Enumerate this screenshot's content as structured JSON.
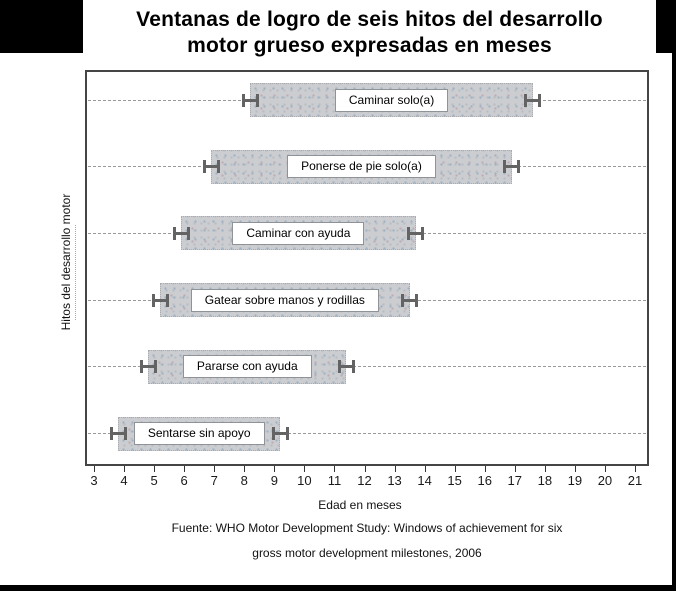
{
  "chart_data": {
    "type": "bar",
    "orientation": "horizontal-range",
    "title": "Ventanas de logro de seis hitos del desarrollo motor grueso expresadas en meses",
    "title_lines": [
      "Ventanas de logro de seis hitos del desarrollo",
      "motor grueso expresadas en meses"
    ],
    "xlabel": "Edad en meses",
    "ylabel": "Hitos del desarrollo motor",
    "xlim": [
      3,
      21
    ],
    "x_ticks": [
      3,
      4,
      5,
      6,
      7,
      8,
      9,
      10,
      11,
      12,
      13,
      14,
      15,
      16,
      17,
      18,
      19,
      20,
      21
    ],
    "grid": "dashed horizontal line per milestone row",
    "milestones": [
      {
        "label": "Caminar solo(a)",
        "start_months": 8.2,
        "end_months": 17.6
      },
      {
        "label": "Ponerse de pie solo(a)",
        "start_months": 6.9,
        "end_months": 16.9
      },
      {
        "label": "Caminar con ayuda",
        "start_months": 5.9,
        "end_months": 13.7
      },
      {
        "label": "Gatear sobre manos y rodillas",
        "start_months": 5.2,
        "end_months": 13.5
      },
      {
        "label": "Pararse con ayuda",
        "start_months": 4.8,
        "end_months": 11.4
      },
      {
        "label": "Sentarse sin apoyo",
        "start_months": 3.8,
        "end_months": 9.2
      }
    ],
    "whisker_halfwidth_months": 0.28,
    "source_lines": [
      "Fuente: WHO Motor Development Study: Windows of achievement for six",
      "gross motor development milestones, 2006"
    ],
    "colors": {
      "bar_fill": "#cbcdd0",
      "bar_border": "#a9abaf",
      "label_box_fill": "#ffffff",
      "label_box_border": "#8f9296",
      "whisker": "#636363",
      "gridline": "#999999",
      "plot_border": "#454545",
      "frame_black": "#000000",
      "text": "#000000"
    }
  }
}
